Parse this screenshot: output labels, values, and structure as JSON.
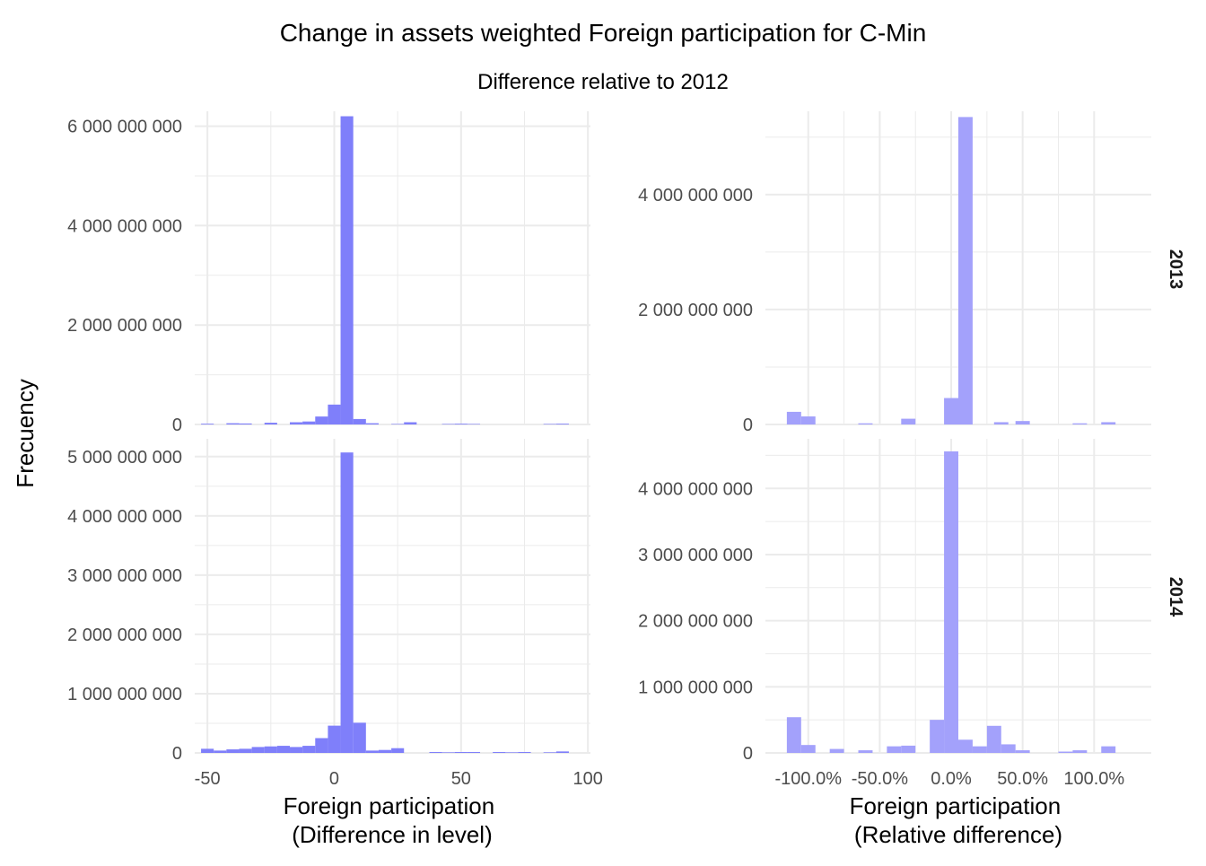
{
  "title": "Change in assets weighted Foreign participation for C-Min",
  "subtitle": "Difference relative to 2012",
  "ylabel": "Frecuency",
  "xlabel_left": [
    "Foreign participation",
    "(Difference in level)"
  ],
  "xlabel_right": [
    "Foreign participation",
    "(Relative difference)"
  ],
  "colors": {
    "left": "#7f7ffa",
    "right": "#a3a1fb",
    "grid": "#ebebeb"
  },
  "chart_data": {
    "type": "bar",
    "facets": {
      "rows": [
        "2013",
        "2014"
      ],
      "cols": [
        "level",
        "relative"
      ]
    },
    "panels": [
      {
        "row": "2013",
        "col": "level",
        "xlim": [
          -55,
          101
        ],
        "ylim": [
          0,
          6300000000
        ],
        "xticks": [
          -50,
          0,
          50,
          100
        ],
        "xtick_labels": [
          "-50",
          "0",
          "50",
          "100"
        ],
        "yticks": [
          0,
          2000000000,
          4000000000,
          6000000000
        ],
        "ytick_labels": [
          "0",
          "2 000 000 000",
          "4 000 000 000",
          "6 000 000 000"
        ],
        "x": [
          -50,
          -40,
          -35,
          -25,
          -15,
          -10,
          -5,
          0,
          5,
          10,
          15,
          25,
          30,
          45,
          50,
          55,
          85,
          90
        ],
        "values": [
          15000000,
          25000000,
          20000000,
          35000000,
          45000000,
          60000000,
          160000000,
          400000000,
          6200000000,
          110000000,
          25000000,
          10000000,
          45000000,
          10000000,
          15000000,
          10000000,
          10000000,
          15000000
        ]
      },
      {
        "row": "2013",
        "col": "relative",
        "xlim": [
          -1.3,
          1.4
        ],
        "ylim": [
          0,
          5450000000
        ],
        "xticks": [
          -1.0,
          -0.5,
          0.0,
          0.5,
          1.0
        ],
        "xtick_labels": [
          "-100.0%",
          "-50.0%",
          "0.0%",
          "50.0%",
          "100.0%"
        ],
        "yticks": [
          0,
          2000000000,
          4000000000
        ],
        "ytick_labels": [
          "0",
          "2 000 000 000",
          "4 000 000 000"
        ],
        "x": [
          -1.1,
          -1.0,
          -0.6,
          -0.3,
          0.0,
          0.1,
          0.35,
          0.5,
          0.9,
          1.1
        ],
        "values": [
          220000000,
          140000000,
          20000000,
          100000000,
          460000000,
          5350000000,
          40000000,
          60000000,
          20000000,
          40000000
        ]
      },
      {
        "row": "2014",
        "col": "level",
        "xlim": [
          -55,
          101
        ],
        "ylim": [
          0,
          5300000000
        ],
        "xticks": [
          -50,
          0,
          50,
          100
        ],
        "xtick_labels": [
          "-50",
          "0",
          "50",
          "100"
        ],
        "yticks": [
          0,
          1000000000,
          2000000000,
          3000000000,
          4000000000,
          5000000000
        ],
        "ytick_labels": [
          "0",
          "1 000 000 000",
          "2 000 000 000",
          "3 000 000 000",
          "4 000 000 000",
          "5 000 000 000"
        ],
        "x": [
          -50,
          -45,
          -40,
          -35,
          -30,
          -25,
          -20,
          -15,
          -10,
          -5,
          0,
          5,
          10,
          15,
          20,
          25,
          40,
          45,
          50,
          55,
          65,
          70,
          75,
          85,
          90
        ],
        "values": [
          70000000,
          40000000,
          60000000,
          70000000,
          100000000,
          110000000,
          120000000,
          100000000,
          120000000,
          250000000,
          460000000,
          5070000000,
          510000000,
          40000000,
          50000000,
          80000000,
          15000000,
          10000000,
          15000000,
          15000000,
          15000000,
          10000000,
          15000000,
          10000000,
          25000000
        ]
      },
      {
        "row": "2014",
        "col": "relative",
        "xlim": [
          -1.3,
          1.4
        ],
        "ylim": [
          0,
          4750000000
        ],
        "xticks": [
          -1.0,
          -0.5,
          0.0,
          0.5,
          1.0
        ],
        "xtick_labels": [
          "-100.0%",
          "-50.0%",
          "0.0%",
          "50.0%",
          "100.0%"
        ],
        "yticks": [
          0,
          1000000000,
          2000000000,
          3000000000,
          4000000000
        ],
        "ytick_labels": [
          "0",
          "1 000 000 000",
          "2 000 000 000",
          "3 000 000 000",
          "4 000 000 000"
        ],
        "x": [
          -1.1,
          -1.0,
          -0.8,
          -0.6,
          -0.4,
          -0.3,
          -0.1,
          0.0,
          0.1,
          0.2,
          0.3,
          0.4,
          0.5,
          0.8,
          0.9,
          1.1
        ],
        "values": [
          540000000,
          120000000,
          60000000,
          40000000,
          100000000,
          110000000,
          500000000,
          4560000000,
          200000000,
          100000000,
          410000000,
          130000000,
          40000000,
          20000000,
          40000000,
          100000000
        ]
      }
    ]
  }
}
